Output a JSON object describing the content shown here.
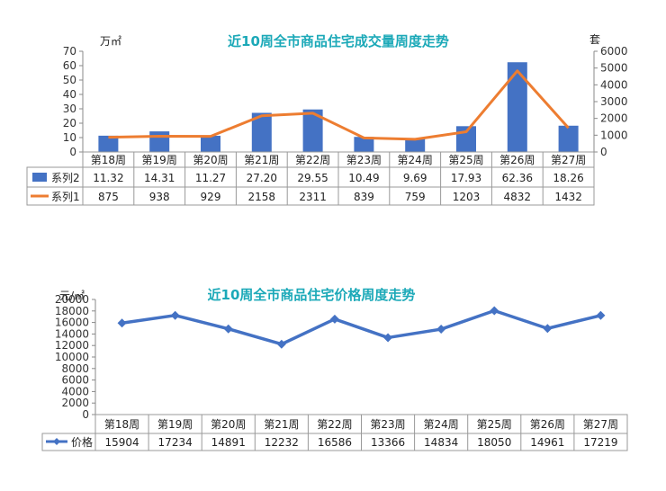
{
  "chart_data": [
    {
      "type": "bar+line",
      "title": "近10周全市商品住宅成交量周度走势",
      "left_unit": "万㎡",
      "right_unit": "套",
      "categories": [
        "第18周",
        "第19周",
        "第20周",
        "第21周",
        "第22周",
        "第23周",
        "第24周",
        "第25周",
        "第26周",
        "第27周"
      ],
      "left_ticks": [
        0,
        10,
        20,
        30,
        40,
        50,
        60,
        70
      ],
      "right_ticks": [
        0,
        1000,
        2000,
        3000,
        4000,
        5000,
        6000
      ],
      "ylim_left": [
        0,
        70
      ],
      "ylim_right": [
        0,
        6000
      ],
      "series": [
        {
          "name": "系列2",
          "kind": "bar",
          "axis": "left",
          "color": "#4472C4",
          "values": [
            11.32,
            14.31,
            11.27,
            27.2,
            29.55,
            10.49,
            9.69,
            17.93,
            62.36,
            18.26
          ],
          "labels": [
            "11.32",
            "14.31",
            "11.27",
            "27.20",
            "29.55",
            "10.49",
            "9.69",
            "17.93",
            "62.36",
            "18.26"
          ]
        },
        {
          "name": "系列1",
          "kind": "line",
          "axis": "right",
          "color": "#ED7D31",
          "values": [
            875,
            938,
            929,
            2158,
            2311,
            839,
            759,
            1203,
            4832,
            1432
          ],
          "labels": [
            "875",
            "938",
            "929",
            "2158",
            "2311",
            "839",
            "759",
            "1203",
            "4832",
            "1432"
          ]
        }
      ]
    },
    {
      "type": "line",
      "title": "近10周全市商品住宅价格周度走势",
      "left_unit": "元/㎡",
      "categories": [
        "第18周",
        "第19周",
        "第20周",
        "第21周",
        "第22周",
        "第23周",
        "第24周",
        "第25周",
        "第26周",
        "第27周"
      ],
      "left_ticks": [
        0,
        2000,
        4000,
        6000,
        8000,
        10000,
        12000,
        14000,
        16000,
        18000,
        20000
      ],
      "ylim": [
        0,
        20000
      ],
      "series": [
        {
          "name": "价格",
          "kind": "line",
          "color": "#4472C4",
          "values": [
            15904,
            17234,
            14891,
            12232,
            16586,
            13366,
            14834,
            18050,
            14961,
            17219
          ],
          "labels": [
            "15904",
            "17234",
            "14891",
            "12232",
            "16586",
            "13366",
            "14834",
            "18050",
            "14961",
            "17219"
          ]
        }
      ]
    }
  ]
}
